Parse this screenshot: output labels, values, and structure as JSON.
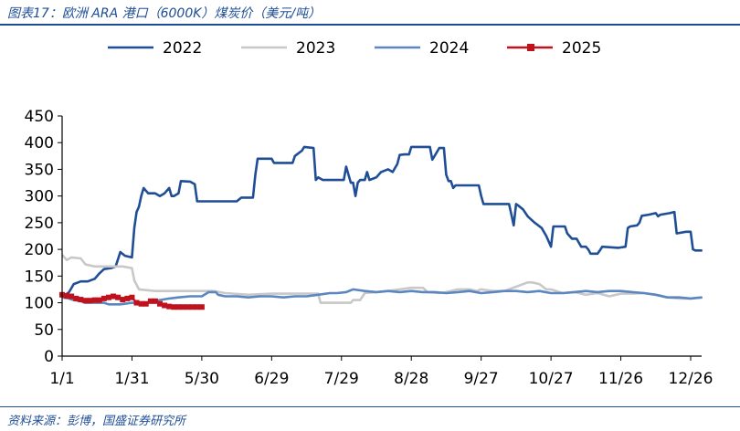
{
  "header": {
    "title": "图表17：欧洲 ARA 港口（6000K）煤炭价（美元/吨）"
  },
  "footer": {
    "source": "资料来源：彭博，国盛证券研究所"
  },
  "chart_data": {
    "type": "line",
    "title": "图表17：欧洲 ARA 港口（6000K）煤炭价（美元/吨）",
    "xlabel": "",
    "ylabel": "",
    "ylim": [
      0,
      450
    ],
    "yticks": [
      0,
      50,
      100,
      150,
      200,
      250,
      300,
      350,
      400,
      450
    ],
    "x_tick_labels": [
      "1/1",
      "1/31",
      "5/30",
      "6/29",
      "7/29",
      "8/28",
      "9/27",
      "10/27",
      "11/26",
      "12/26"
    ],
    "x_tick_days": [
      0,
      30,
      60,
      90,
      120,
      150,
      180,
      210,
      240,
      270
    ],
    "x_range_days": [
      0,
      276
    ],
    "x_unit": "days from 1/1 (ticks labeled with dates)",
    "grid": false,
    "legend_position": "top",
    "series": [
      {
        "name": "2022",
        "color": "#1f4e96",
        "marker": "none",
        "points": [
          [
            0,
            110
          ],
          [
            3,
            120
          ],
          [
            5,
            135
          ],
          [
            8,
            140
          ],
          [
            11,
            140
          ],
          [
            14,
            145
          ],
          [
            16,
            155
          ],
          [
            18,
            163
          ],
          [
            21,
            165
          ],
          [
            23,
            168
          ],
          [
            25,
            195
          ],
          [
            27,
            188
          ],
          [
            30,
            185
          ],
          [
            31,
            240
          ],
          [
            32,
            270
          ],
          [
            33,
            280
          ],
          [
            34,
            300
          ],
          [
            35,
            315
          ],
          [
            36,
            310
          ],
          [
            37,
            305
          ],
          [
            40,
            305
          ],
          [
            42,
            300
          ],
          [
            44,
            305
          ],
          [
            46,
            315
          ],
          [
            47,
            300
          ],
          [
            48,
            300
          ],
          [
            50,
            305
          ],
          [
            51,
            328
          ],
          [
            55,
            327
          ],
          [
            57,
            322
          ],
          [
            58,
            290
          ],
          [
            64,
            290
          ],
          [
            75,
            290
          ],
          [
            77,
            297
          ],
          [
            82,
            297
          ],
          [
            83,
            340
          ],
          [
            84,
            370
          ],
          [
            90,
            370
          ],
          [
            91,
            362
          ],
          [
            99,
            362
          ],
          [
            100,
            375
          ],
          [
            103,
            385
          ],
          [
            104,
            392
          ],
          [
            108,
            390
          ],
          [
            109,
            330
          ],
          [
            110,
            335
          ],
          [
            112,
            330
          ],
          [
            121,
            330
          ],
          [
            122,
            355
          ],
          [
            124,
            325
          ],
          [
            125,
            325
          ],
          [
            126,
            300
          ],
          [
            127,
            325
          ],
          [
            128,
            330
          ],
          [
            130,
            330
          ],
          [
            131,
            345
          ],
          [
            132,
            330
          ],
          [
            135,
            335
          ],
          [
            137,
            345
          ],
          [
            140,
            350
          ],
          [
            142,
            345
          ],
          [
            144,
            360
          ],
          [
            145,
            377
          ],
          [
            147,
            378
          ],
          [
            149,
            378
          ],
          [
            150,
            392
          ],
          [
            154,
            392
          ],
          [
            158,
            392
          ],
          [
            159,
            368
          ],
          [
            160,
            375
          ],
          [
            162,
            390
          ],
          [
            164,
            390
          ],
          [
            165,
            340
          ],
          [
            166,
            328
          ],
          [
            167,
            328
          ],
          [
            168,
            315
          ],
          [
            169,
            320
          ],
          [
            172,
            320
          ],
          [
            179,
            320
          ],
          [
            180,
            300
          ],
          [
            181,
            285
          ],
          [
            185,
            285
          ],
          [
            190,
            285
          ],
          [
            192,
            285
          ],
          [
            193,
            265
          ],
          [
            194,
            245
          ],
          [
            195,
            285
          ],
          [
            196,
            282
          ],
          [
            198,
            275
          ],
          [
            200,
            262
          ],
          [
            203,
            250
          ],
          [
            206,
            240
          ],
          [
            208,
            225
          ],
          [
            210,
            205
          ],
          [
            211,
            243
          ],
          [
            216,
            243
          ],
          [
            217,
            230
          ],
          [
            219,
            220
          ],
          [
            221,
            220
          ],
          [
            223,
            205
          ],
          [
            225,
            205
          ],
          [
            226,
            200
          ],
          [
            227,
            192
          ],
          [
            230,
            192
          ],
          [
            231,
            198
          ],
          [
            232,
            205
          ],
          [
            239,
            203
          ],
          [
            242,
            205
          ],
          [
            243,
            240
          ],
          [
            244,
            243
          ],
          [
            247,
            245
          ],
          [
            248,
            250
          ],
          [
            249,
            263
          ],
          [
            252,
            265
          ],
          [
            255,
            268
          ],
          [
            256,
            262
          ],
          [
            257,
            265
          ],
          [
            261,
            268
          ],
          [
            263,
            270
          ],
          [
            264,
            230
          ],
          [
            268,
            233
          ],
          [
            270,
            233
          ],
          [
            271,
            200
          ],
          [
            272,
            198
          ],
          [
            275,
            198
          ]
        ]
      },
      {
        "name": "2023",
        "color": "#c8c8c8",
        "marker": "none",
        "points": [
          [
            0,
            190
          ],
          [
            2,
            180
          ],
          [
            4,
            185
          ],
          [
            8,
            183
          ],
          [
            10,
            172
          ],
          [
            14,
            168
          ],
          [
            20,
            168
          ],
          [
            26,
            168
          ],
          [
            30,
            165
          ],
          [
            31,
            142
          ],
          [
            33,
            125
          ],
          [
            40,
            122
          ],
          [
            50,
            122
          ],
          [
            60,
            122
          ],
          [
            65,
            122
          ],
          [
            70,
            118
          ],
          [
            80,
            115
          ],
          [
            90,
            117
          ],
          [
            100,
            117
          ],
          [
            110,
            117
          ],
          [
            111,
            100
          ],
          [
            115,
            100
          ],
          [
            124,
            100
          ],
          [
            125,
            105
          ],
          [
            128,
            105
          ],
          [
            130,
            118
          ],
          [
            135,
            120
          ],
          [
            140,
            122
          ],
          [
            145,
            125
          ],
          [
            150,
            128
          ],
          [
            155,
            128
          ],
          [
            157,
            120
          ],
          [
            162,
            118
          ],
          [
            165,
            120
          ],
          [
            170,
            125
          ],
          [
            175,
            125
          ],
          [
            178,
            122
          ],
          [
            180,
            125
          ],
          [
            185,
            122
          ],
          [
            190,
            122
          ],
          [
            195,
            130
          ],
          [
            200,
            138
          ],
          [
            202,
            138
          ],
          [
            205,
            135
          ],
          [
            208,
            125
          ],
          [
            210,
            125
          ],
          [
            215,
            118
          ],
          [
            220,
            120
          ],
          [
            225,
            115
          ],
          [
            230,
            118
          ],
          [
            235,
            112
          ],
          [
            240,
            117
          ],
          [
            245,
            117
          ],
          [
            250,
            118
          ],
          [
            255,
            115
          ],
          [
            260,
            110
          ],
          [
            265,
            108
          ],
          [
            270,
            108
          ],
          [
            275,
            110
          ]
        ]
      },
      {
        "name": "2024",
        "color": "#5b86c0",
        "marker": "none",
        "points": [
          [
            0,
            110
          ],
          [
            3,
            108
          ],
          [
            5,
            105
          ],
          [
            8,
            103
          ],
          [
            10,
            100
          ],
          [
            15,
            100
          ],
          [
            18,
            100
          ],
          [
            20,
            97
          ],
          [
            25,
            97
          ],
          [
            30,
            100
          ],
          [
            33,
            100
          ],
          [
            36,
            98
          ],
          [
            38,
            102
          ],
          [
            42,
            105
          ],
          [
            46,
            108
          ],
          [
            50,
            110
          ],
          [
            55,
            112
          ],
          [
            60,
            112
          ],
          [
            63,
            120
          ],
          [
            66,
            120
          ],
          [
            67,
            115
          ],
          [
            70,
            112
          ],
          [
            75,
            112
          ],
          [
            80,
            110
          ],
          [
            85,
            112
          ],
          [
            90,
            112
          ],
          [
            95,
            110
          ],
          [
            100,
            112
          ],
          [
            105,
            112
          ],
          [
            110,
            115
          ],
          [
            115,
            118
          ],
          [
            118,
            118
          ],
          [
            122,
            120
          ],
          [
            125,
            125
          ],
          [
            130,
            122
          ],
          [
            135,
            120
          ],
          [
            140,
            122
          ],
          [
            145,
            120
          ],
          [
            150,
            122
          ],
          [
            155,
            120
          ],
          [
            160,
            120
          ],
          [
            165,
            118
          ],
          [
            170,
            120
          ],
          [
            175,
            122
          ],
          [
            180,
            118
          ],
          [
            185,
            120
          ],
          [
            190,
            122
          ],
          [
            195,
            122
          ],
          [
            200,
            120
          ],
          [
            205,
            122
          ],
          [
            210,
            118
          ],
          [
            215,
            118
          ],
          [
            220,
            120
          ],
          [
            225,
            122
          ],
          [
            230,
            120
          ],
          [
            235,
            122
          ],
          [
            240,
            122
          ],
          [
            245,
            120
          ],
          [
            250,
            118
          ],
          [
            255,
            115
          ],
          [
            260,
            110
          ],
          [
            265,
            110
          ],
          [
            270,
            108
          ],
          [
            275,
            110
          ]
        ]
      },
      {
        "name": "2025",
        "color": "#c0121c",
        "marker": "square",
        "points": [
          [
            0,
            115
          ],
          [
            2,
            113
          ],
          [
            4,
            112
          ],
          [
            6,
            108
          ],
          [
            8,
            106
          ],
          [
            10,
            104
          ],
          [
            12,
            104
          ],
          [
            14,
            105
          ],
          [
            16,
            105
          ],
          [
            18,
            108
          ],
          [
            20,
            110
          ],
          [
            22,
            112
          ],
          [
            24,
            110
          ],
          [
            26,
            106
          ],
          [
            28,
            108
          ],
          [
            30,
            110
          ],
          [
            32,
            100
          ],
          [
            34,
            98
          ],
          [
            36,
            98
          ],
          [
            38,
            103
          ],
          [
            40,
            103
          ],
          [
            42,
            98
          ],
          [
            44,
            95
          ],
          [
            46,
            93
          ],
          [
            48,
            92
          ],
          [
            50,
            92
          ],
          [
            52,
            92
          ],
          [
            54,
            92
          ],
          [
            56,
            92
          ],
          [
            58,
            92
          ],
          [
            60,
            92
          ]
        ]
      }
    ]
  }
}
